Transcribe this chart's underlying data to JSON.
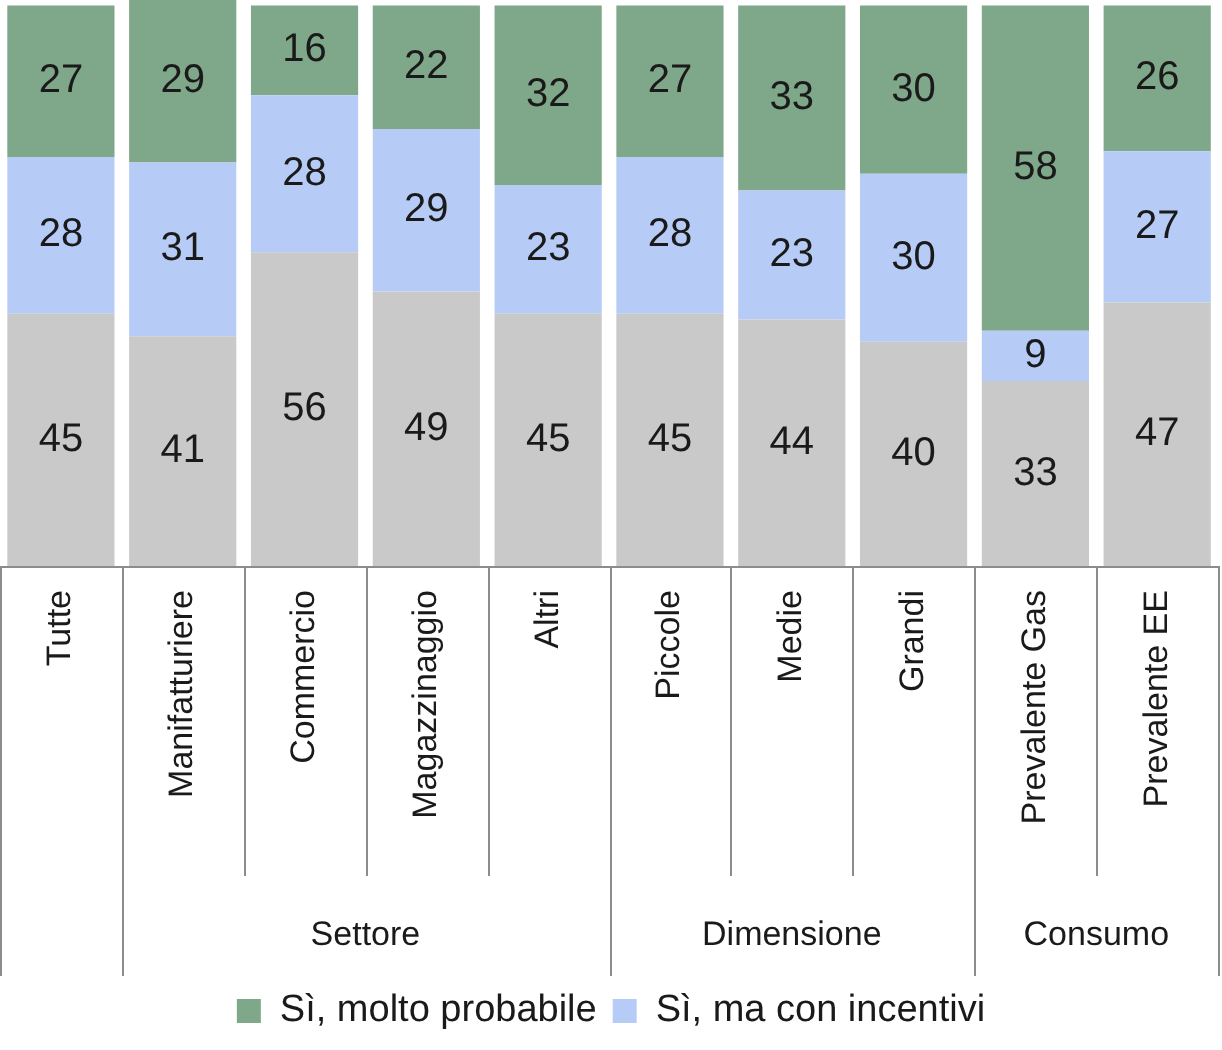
{
  "chart_data": {
    "type": "bar",
    "stacked": true,
    "data_labels": true,
    "tick_labels": "x",
    "legend": "bottom",
    "ylim": [
      0,
      101
    ],
    "categories": [
      "Tutte",
      "Manifatturiere",
      "Commercio",
      "Magazzinaggio",
      "Altri",
      "Piccole",
      "Medie",
      "Grandi",
      "Prevalente Gas",
      "Prevalente EE"
    ],
    "series": [
      {
        "color": "#c9c9c9",
        "values": [
          45,
          41,
          56,
          49,
          45,
          45,
          44,
          40,
          33,
          47
        ]
      },
      {
        "name": "Sì, ma con incentivi",
        "color": "#b7cbf7",
        "values": [
          28,
          31,
          28,
          29,
          23,
          28,
          23,
          30,
          9,
          27
        ]
      },
      {
        "name": "Sì, molto probabile",
        "color": "#7fa78a",
        "values": [
          27,
          29,
          16,
          22,
          32,
          27,
          33,
          30,
          58,
          26
        ]
      }
    ],
    "annotations": [
      "Settore",
      "Dimensione",
      "Consumo"
    ]
  }
}
